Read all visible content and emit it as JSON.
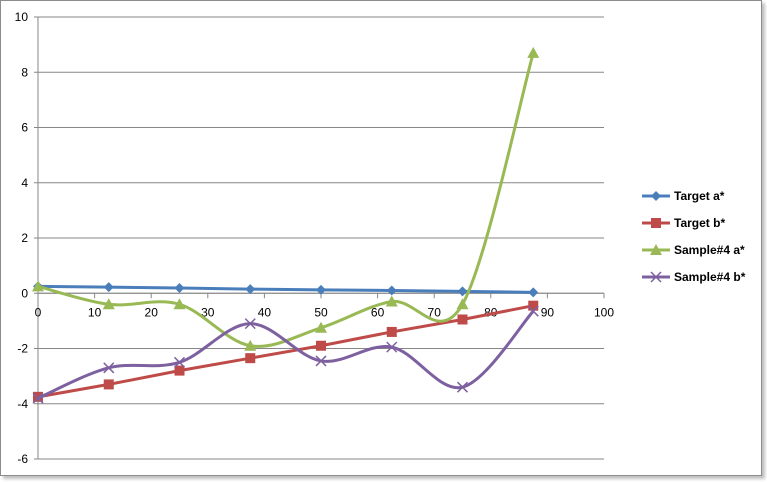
{
  "chart_data": {
    "type": "line",
    "title": "",
    "xlabel": "",
    "ylabel": "",
    "xlim": [
      0,
      100
    ],
    "ylim": [
      -6,
      10
    ],
    "x_ticks": [
      0,
      10,
      20,
      30,
      40,
      50,
      60,
      70,
      80,
      90,
      100
    ],
    "y_ticks": [
      -6,
      -4,
      -2,
      0,
      2,
      4,
      6,
      8,
      10
    ],
    "grid": "horizontal major gridlines",
    "legend_position": "right",
    "x": [
      0,
      12.5,
      25,
      37.5,
      50,
      62.5,
      75,
      87.5
    ],
    "series": [
      {
        "name": "Target a*",
        "color": "#4a7ebb",
        "marker": "diamond",
        "smooth": false,
        "values": [
          0.25,
          0.22,
          0.19,
          0.15,
          0.12,
          0.1,
          0.07,
          0.03
        ]
      },
      {
        "name": "Target b*",
        "color": "#be4b48",
        "marker": "square",
        "smooth": false,
        "values": [
          -3.75,
          -3.3,
          -2.8,
          -2.35,
          -1.9,
          -1.4,
          -0.95,
          -0.45
        ]
      },
      {
        "name": "Sample#4 a*",
        "color": "#98b954",
        "marker": "triangle",
        "smooth": true,
        "values": [
          0.25,
          -0.4,
          -0.4,
          -1.9,
          -1.25,
          -0.3,
          -0.4,
          8.7
        ]
      },
      {
        "name": "Sample#4 b*",
        "color": "#7d60a0",
        "marker": "x",
        "smooth": true,
        "values": [
          -3.8,
          -2.7,
          -2.5,
          -1.1,
          -2.45,
          -1.95,
          -3.4,
          -0.65
        ]
      }
    ]
  }
}
